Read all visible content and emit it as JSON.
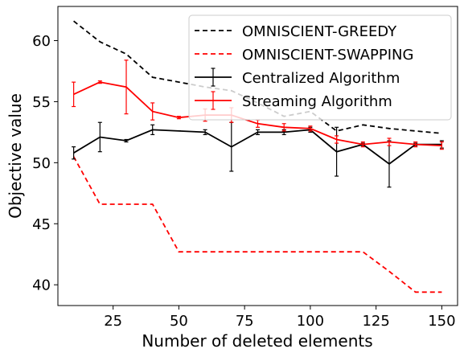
{
  "chart_data": {
    "type": "line",
    "title": "",
    "xlabel": "Number of deleted elements",
    "ylabel": "Objective value",
    "xlim": [
      4,
      156
    ],
    "ylim": [
      38.3,
      62.8
    ],
    "xticks": [
      25,
      50,
      75,
      100,
      125,
      150
    ],
    "yticks": [
      40,
      45,
      50,
      55,
      60
    ],
    "grid": false,
    "legend_position": "top-right",
    "series": [
      {
        "name": "OMNISCIENT-GREEDY",
        "style": "dashed",
        "color": "#000000",
        "x": [
          10,
          20,
          30,
          40,
          50,
          60,
          70,
          80,
          90,
          100,
          110,
          120,
          130,
          140,
          150
        ],
        "y": [
          61.6,
          59.9,
          58.9,
          57.0,
          56.6,
          56.2,
          55.9,
          54.9,
          53.8,
          54.2,
          52.6,
          53.1,
          52.8,
          52.6,
          52.4
        ]
      },
      {
        "name": "OMNISCIENT-SWAPPING",
        "style": "dashed",
        "color": "#ff0000",
        "x": [
          10,
          20,
          30,
          40,
          50,
          60,
          70,
          80,
          90,
          100,
          110,
          120,
          130,
          140,
          150
        ],
        "y": [
          50.5,
          46.6,
          46.6,
          46.6,
          42.7,
          42.7,
          42.7,
          42.7,
          42.7,
          42.7,
          42.7,
          42.7,
          41.1,
          39.4,
          39.4
        ]
      },
      {
        "name": "Centralized Algorithm",
        "style": "solid",
        "color": "#000000",
        "x": [
          10,
          20,
          30,
          40,
          50,
          60,
          70,
          80,
          90,
          100,
          110,
          120,
          130,
          140,
          150
        ],
        "y": [
          50.8,
          52.1,
          51.8,
          52.7,
          52.6,
          52.5,
          51.3,
          52.5,
          52.5,
          52.7,
          50.9,
          51.5,
          49.9,
          51.5,
          51.5
        ],
        "err": [
          0.5,
          1.2,
          0.1,
          0.4,
          0.0,
          0.2,
          2.0,
          0.2,
          0.2,
          0.2,
          2.0,
          0.1,
          1.9,
          0.1,
          0.3
        ]
      },
      {
        "name": "Streaming Algorithm",
        "style": "solid",
        "color": "#ff0000",
        "x": [
          10,
          20,
          30,
          40,
          50,
          60,
          70,
          80,
          90,
          100,
          110,
          120,
          130,
          140,
          150
        ],
        "y": [
          55.6,
          56.6,
          56.2,
          54.2,
          53.7,
          53.9,
          53.9,
          53.2,
          52.9,
          52.8,
          51.9,
          51.5,
          51.7,
          51.5,
          51.4
        ],
        "err": [
          1.0,
          0.1,
          2.2,
          0.7,
          0.1,
          0.5,
          0.6,
          0.3,
          0.3,
          0.2,
          0.3,
          0.2,
          0.3,
          0.2,
          0.3
        ]
      }
    ]
  }
}
